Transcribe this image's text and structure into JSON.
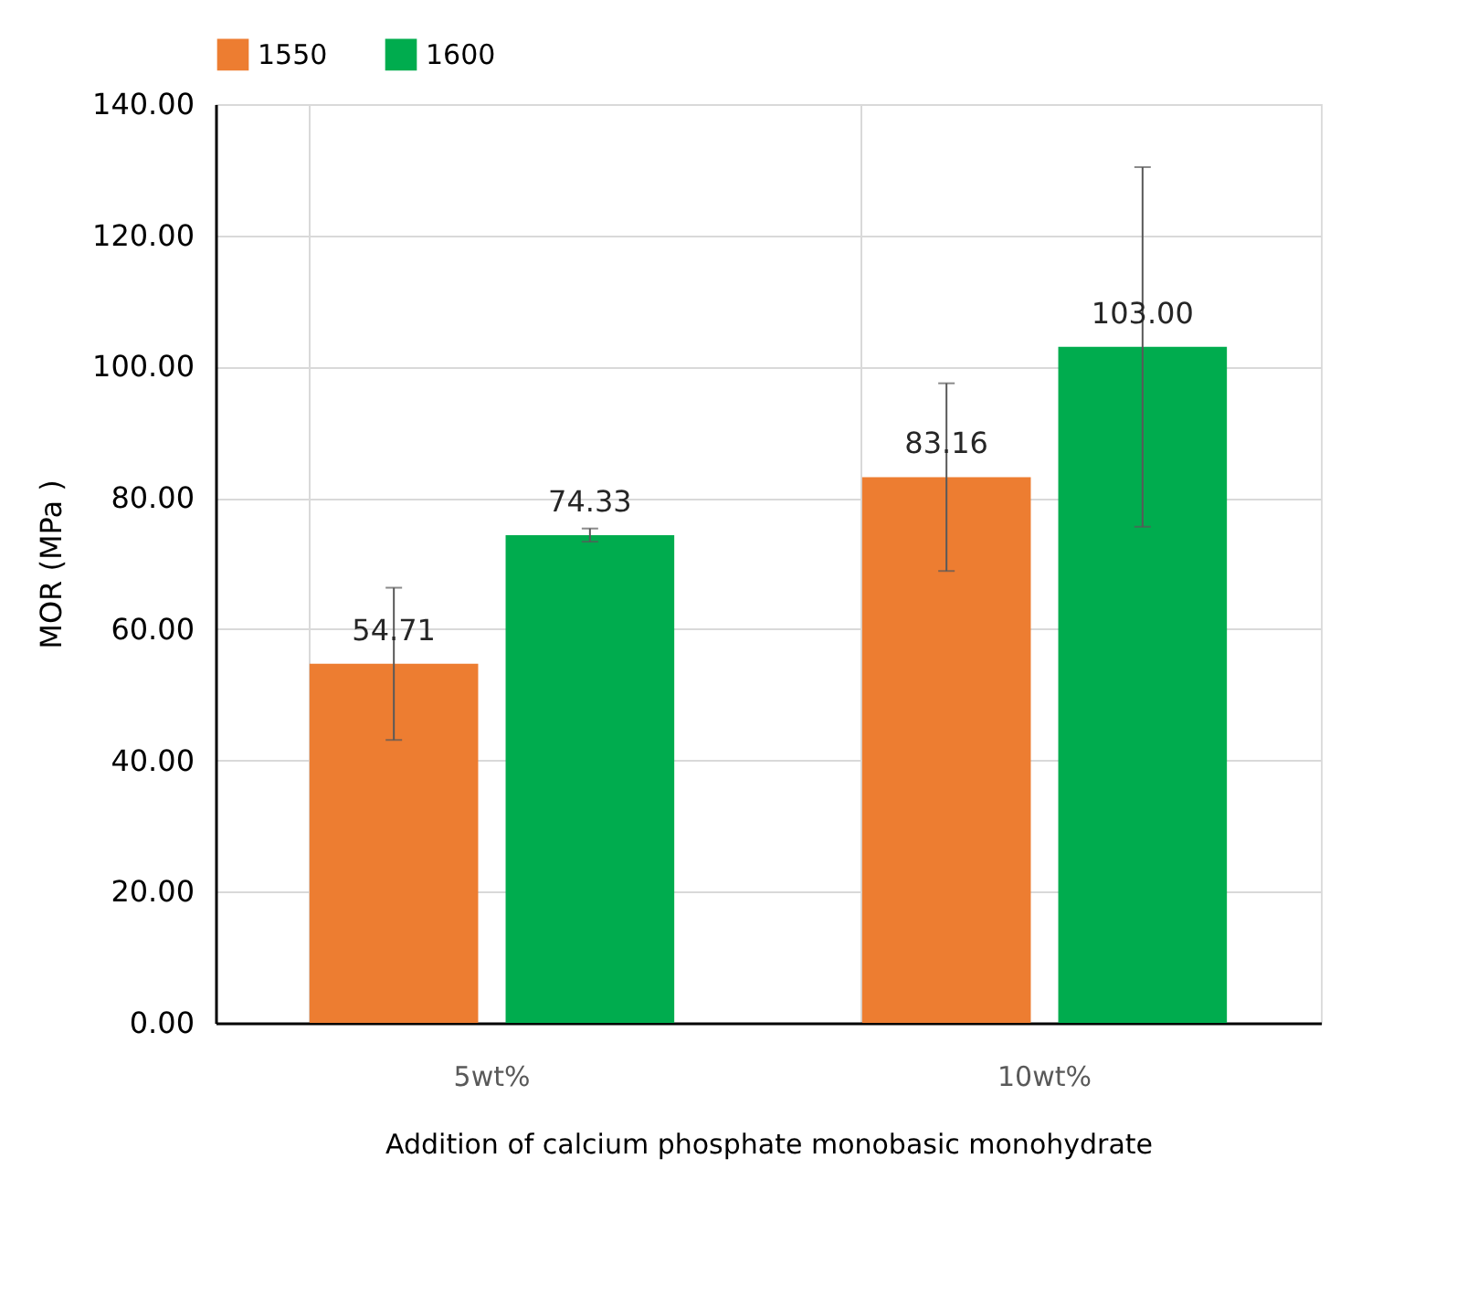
{
  "chart_data": {
    "type": "bar",
    "xlabel": "Addition of calcium phosphate monobasic monohydrate",
    "ylabel": "MOR (MPa )",
    "categories": [
      "5wt%",
      "10wt%"
    ],
    "series": [
      {
        "name": "1550",
        "color": "#ed7d31",
        "values": [
          54.71,
          83.16
        ],
        "errors": [
          11.6,
          14.3
        ],
        "value_labels": [
          "54.71",
          "83.16"
        ]
      },
      {
        "name": "1600",
        "color": "#00ac4e",
        "values": [
          74.33,
          103.0
        ],
        "errors": [
          1.0,
          27.4
        ],
        "value_labels": [
          "74.33",
          "103.00"
        ]
      }
    ],
    "ylim": [
      0,
      140
    ],
    "yticks": [
      {
        "value": 0,
        "label": "0.00"
      },
      {
        "value": 20,
        "label": "20.00"
      },
      {
        "value": 40,
        "label": "40.00"
      },
      {
        "value": 60,
        "label": "60.00"
      },
      {
        "value": 80,
        "label": "80.00"
      },
      {
        "value": 100,
        "label": "100.00"
      },
      {
        "value": 120,
        "label": "120.00"
      },
      {
        "value": 140,
        "label": "140.00"
      }
    ],
    "grid": "y",
    "legend": "top"
  }
}
